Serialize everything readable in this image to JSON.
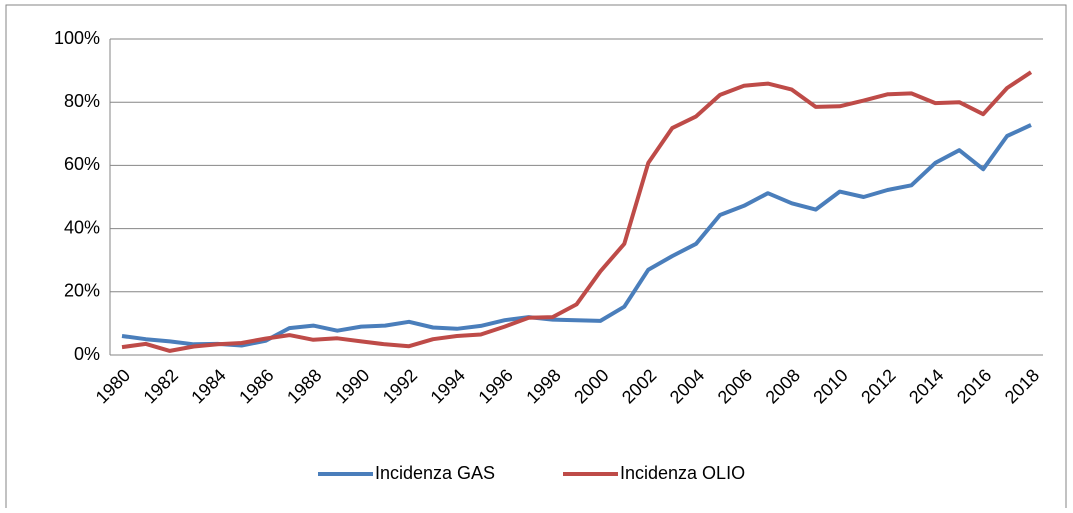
{
  "chart_data": {
    "type": "line",
    "categories": [
      "1980",
      null,
      "1982",
      null,
      "1984",
      null,
      "1986",
      null,
      "1988",
      null,
      "1990",
      null,
      "1992",
      null,
      "1994",
      null,
      "1996",
      null,
      "1998",
      null,
      "2000",
      null,
      "2002",
      null,
      "2004",
      null,
      "2006",
      null,
      "2008",
      null,
      "2010",
      null,
      "2012",
      null,
      "2014",
      null,
      "2016",
      null,
      "2018"
    ],
    "series": [
      {
        "name": "Incidenza GAS",
        "color": "#4a7ebb",
        "values": [
          6,
          5,
          4.3,
          3.4,
          3.5,
          3,
          4.5,
          8.5,
          9.3,
          7.7,
          9,
          9.3,
          10.5,
          8.7,
          8.3,
          9.2,
          11,
          12,
          11.2,
          11,
          10.8,
          15.3,
          27,
          31.3,
          35.2,
          44.3,
          47.2,
          51.2,
          48,
          46,
          51.7,
          50,
          52.2,
          53.7,
          60.8,
          64.8,
          58.8,
          69.3,
          72.8
        ]
      },
      {
        "name": "Incidenza OLIO",
        "color": "#be4b48",
        "values": [
          2.5,
          3.5,
          1.3,
          2.7,
          3.4,
          3.8,
          5.2,
          6.3,
          4.8,
          5.3,
          4.3,
          3.4,
          2.8,
          5,
          6,
          6.5,
          9,
          11.8,
          12,
          16,
          26.5,
          35.2,
          60.8,
          71.8,
          75.5,
          82.3,
          85.2,
          85.9,
          84,
          78.5,
          78.7,
          80.5,
          82.5,
          82.8,
          79.7,
          80,
          76.2,
          84.5,
          89.5
        ]
      }
    ],
    "ylim": [
      0,
      100
    ],
    "yticks": [
      {
        "value": 0,
        "label": "0%"
      },
      {
        "value": 20,
        "label": "20%"
      },
      {
        "value": 40,
        "label": "40%"
      },
      {
        "value": 60,
        "label": "60%"
      },
      {
        "value": 80,
        "label": "80%"
      },
      {
        "value": 100,
        "label": "100%"
      }
    ],
    "grid": true,
    "legend": "bottom"
  }
}
